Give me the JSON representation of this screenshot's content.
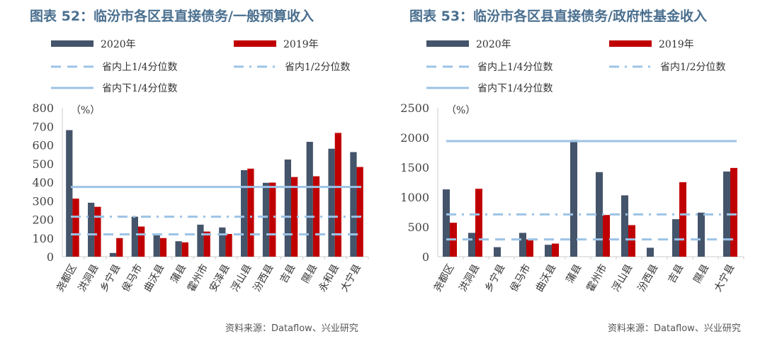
{
  "colors": {
    "s2020": "#44546a",
    "s2019": "#c00000",
    "line": "#9dc3e6"
  },
  "chart_data": [
    {
      "type": "bar",
      "title": "图表 52：临汾市各区县直接债务/一般预算收入",
      "unit": "（%）",
      "source": "资料来源：Dataflow、兴业研究",
      "categories": [
        "尧都区",
        "洪洞县",
        "乡宁县",
        "侯马市",
        "曲沃县",
        "蒲县",
        "霍州市",
        "安泽县",
        "浮山县",
        "汾西县",
        "吉县",
        "隰县",
        "永和县",
        "大宁县"
      ],
      "series": [
        {
          "name": "2020年",
          "values": [
            680,
            290,
            20,
            215,
            115,
            83,
            172,
            157,
            465,
            397,
            522,
            617,
            580,
            562
          ]
        },
        {
          "name": "2019年",
          "values": [
            312,
            268,
            100,
            162,
            100,
            77,
            135,
            122,
            473,
            398,
            428,
            432,
            665,
            482
          ]
        }
      ],
      "reference_lines": [
        {
          "name": "省内上1/4分位数",
          "value": 120,
          "style": "dash"
        },
        {
          "name": "省内1/2分位数",
          "value": 215,
          "style": "dashdot"
        },
        {
          "name": "省内下1/4分位数",
          "value": 375,
          "style": "solid"
        }
      ],
      "ylim": [
        0,
        800
      ],
      "yticks": [
        0,
        100,
        200,
        300,
        400,
        500,
        600,
        700,
        800
      ]
    },
    {
      "type": "bar",
      "title": "图表 53：临汾市各区县直接债务/政府性基金收入",
      "unit": "（%）",
      "source": "资料来源：Dataflow、兴业研究",
      "categories": [
        "尧都区",
        "洪洞县",
        "乡宁县",
        "侯马市",
        "曲沃县",
        "蒲县",
        "霍州市",
        "浮山县",
        "汾西县",
        "吉县",
        "隰县",
        "大宁县"
      ],
      "series": [
        {
          "name": "2020年",
          "values": [
            1130,
            400,
            160,
            400,
            200,
            1960,
            1420,
            1030,
            150,
            630,
            740,
            1430
          ]
        },
        {
          "name": "2019年",
          "values": [
            570,
            1140,
            0,
            290,
            220,
            0,
            700,
            530,
            0,
            1250,
            0,
            1490
          ]
        }
      ],
      "reference_lines": [
        {
          "name": "省内上1/4分位数",
          "value": 290,
          "style": "dash"
        },
        {
          "name": "省内1/2分位数",
          "value": 710,
          "style": "dashdot"
        },
        {
          "name": "省内下1/4分位数",
          "value": 1940,
          "style": "solid"
        }
      ],
      "ylim": [
        0,
        2500
      ],
      "yticks": [
        0,
        500,
        1000,
        1500,
        2000,
        2500
      ]
    }
  ]
}
